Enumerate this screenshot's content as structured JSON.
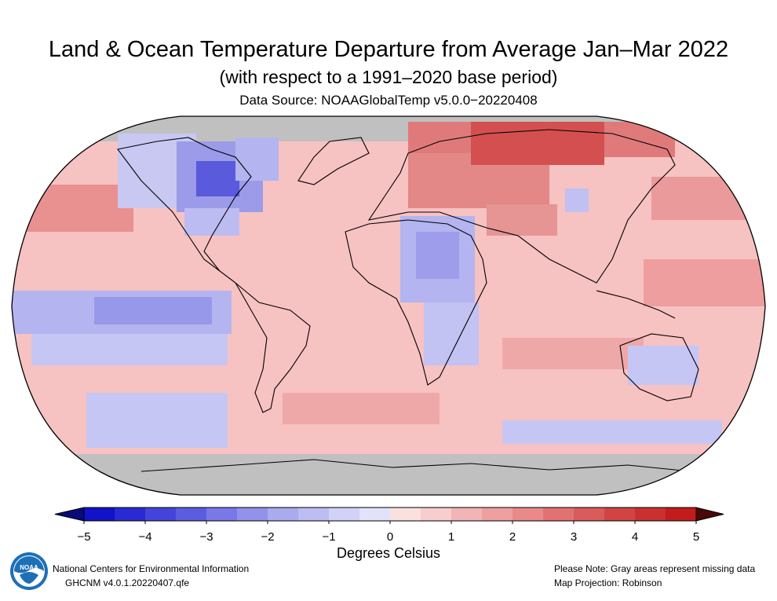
{
  "title": "Land & Ocean Temperature Departure from Average Jan–Mar 2022",
  "subtitle": "(with respect to a 1991–2020 base period)",
  "source": "Data Source: NOAAGlobalTemp v5.0.0−20220408",
  "map": {
    "projection": "Robinson",
    "missing_color": "#c0c0c0",
    "ocean_base_color": "#f7c2c2"
  },
  "colorbar": {
    "ticks": [
      "−5",
      "−4",
      "−3",
      "−2",
      "−1",
      "0",
      "1",
      "2",
      "3",
      "4",
      "5"
    ],
    "colors": [
      "#1212c8",
      "#2a2ad2",
      "#4444da",
      "#5c5ce0",
      "#7878e6",
      "#9292ea",
      "#aaaaef",
      "#bdbdf3",
      "#d2d2f7",
      "#e2e2fb",
      "#fbe0e0",
      "#f7cdcd",
      "#f2b5b5",
      "#eea0a0",
      "#e98989",
      "#e27272",
      "#da5b5b",
      "#d24444",
      "#c93030",
      "#c21c1c"
    ],
    "unit_label": "Degrees Celsius",
    "min": -5,
    "max": 5
  },
  "footer": {
    "org": "National Centers for Environmental Information",
    "version": "GHCNM v4.0.1.20220407.qfe",
    "note": "Please Note: Gray areas represent missing data",
    "projection": "Map Projection: Robinson",
    "logo_text": "NOAA"
  }
}
